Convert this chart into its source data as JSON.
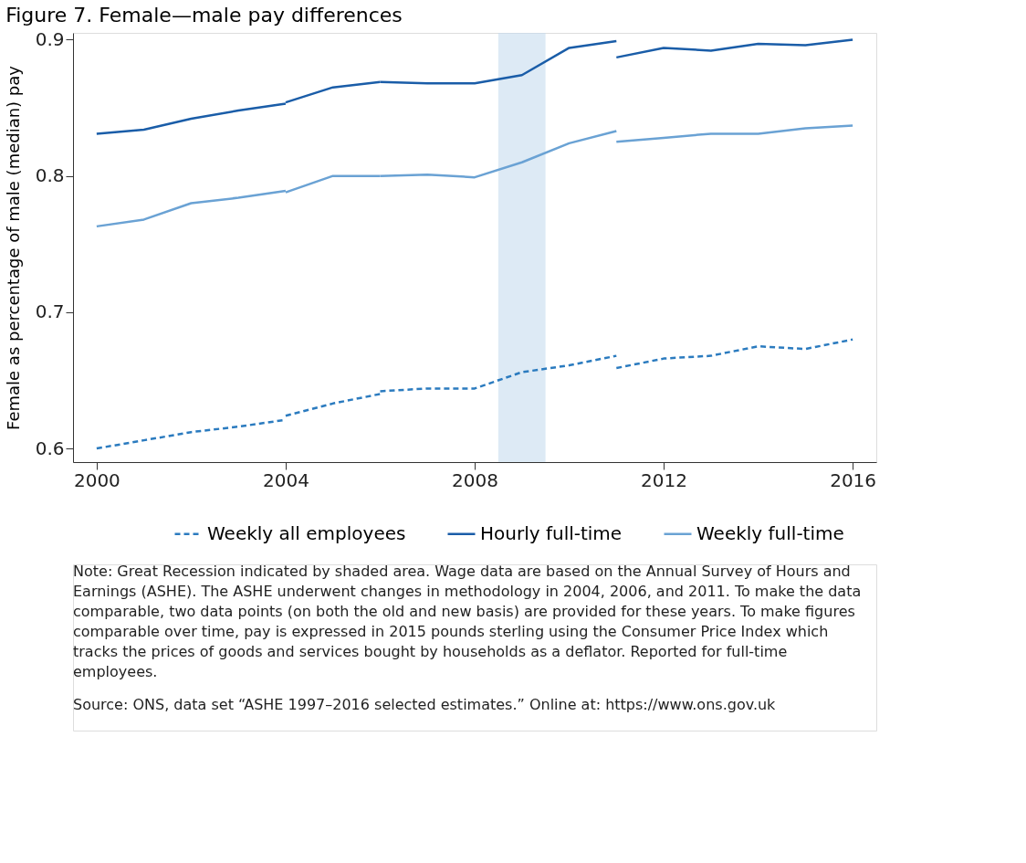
{
  "chart_data": {
    "type": "line",
    "title": "Figure 7. Female—male pay differences",
    "ylabel": "Female as percentage of male (median) pay",
    "xlim": [
      1999.5,
      2016.5
    ],
    "xticks": [
      2000,
      2004,
      2008,
      2012,
      2016
    ],
    "ylim": [
      0.59,
      0.905
    ],
    "yticks": [
      0.6,
      0.7,
      0.8,
      0.9
    ],
    "grid": false,
    "legend": "bottom",
    "series": [
      {
        "name": "Weekly all employees",
        "color": "#2b7bbf",
        "line_style": "dashed",
        "x": [
          2000,
          2001,
          2002,
          2003,
          2004,
          null,
          2004,
          2005,
          2006,
          null,
          2006,
          2007,
          2008,
          2009,
          2010,
          2011,
          null,
          2011,
          2012,
          2013,
          2014,
          2015,
          2016
        ],
        "values": [
          0.6,
          0.606,
          0.612,
          0.616,
          0.621,
          null,
          0.624,
          0.633,
          0.64,
          null,
          0.642,
          0.644,
          0.644,
          0.656,
          0.661,
          0.668,
          null,
          0.659,
          0.666,
          0.668,
          0.675,
          0.673,
          0.68
        ]
      },
      {
        "name": "Hourly full-time",
        "color": "#1a5da8",
        "line_style": "solid",
        "x": [
          2000,
          2001,
          2002,
          2003,
          2004,
          null,
          2004,
          2005,
          2006,
          null,
          2006,
          2007,
          2008,
          2009,
          2010,
          2011,
          null,
          2011,
          2012,
          2013,
          2014,
          2015,
          2016
        ],
        "values": [
          0.831,
          0.834,
          0.842,
          0.848,
          0.853,
          null,
          0.854,
          0.865,
          0.869,
          null,
          0.869,
          0.868,
          0.868,
          0.874,
          0.894,
          0.899,
          null,
          0.887,
          0.894,
          0.892,
          0.897,
          0.896,
          0.9
        ]
      },
      {
        "name": "Weekly full-time",
        "color": "#6aa2d4",
        "line_style": "solid",
        "x": [
          2000,
          2001,
          2002,
          2003,
          2004,
          null,
          2004,
          2005,
          2006,
          null,
          2006,
          2007,
          2008,
          2009,
          2010,
          2011,
          null,
          2011,
          2012,
          2013,
          2014,
          2015,
          2016
        ],
        "values": [
          0.763,
          0.768,
          0.78,
          0.784,
          0.789,
          null,
          0.788,
          0.8,
          0.8,
          null,
          0.8,
          0.801,
          0.799,
          0.81,
          0.824,
          0.833,
          null,
          0.825,
          0.828,
          0.831,
          0.831,
          0.835,
          0.837
        ]
      }
    ],
    "bands": [
      {
        "axis": "x",
        "from": 2008.5,
        "to": 2009.5,
        "color": "#c6dcef"
      }
    ],
    "annotations": [
      "Note: Great Recession indicated by shaded area. Wage data are based on the Annual Survey of Hours and Earnings (ASHE). The ASHE underwent changes in methodology in 2004, 2006, and 2011. To make the data comparable, two data points (on both the old and new basis) are provided for these years. To make figures comparable over time, pay is expressed in 2015 pounds sterling using the Consumer Price Index which tracks the prices of goods and services bought by households as a deflator. Reported for full-time employees.",
      "Source: ONS, data set “ASHE 1997–2016 selected estimates.” Online at: https://www.ons.gov.uk"
    ]
  }
}
